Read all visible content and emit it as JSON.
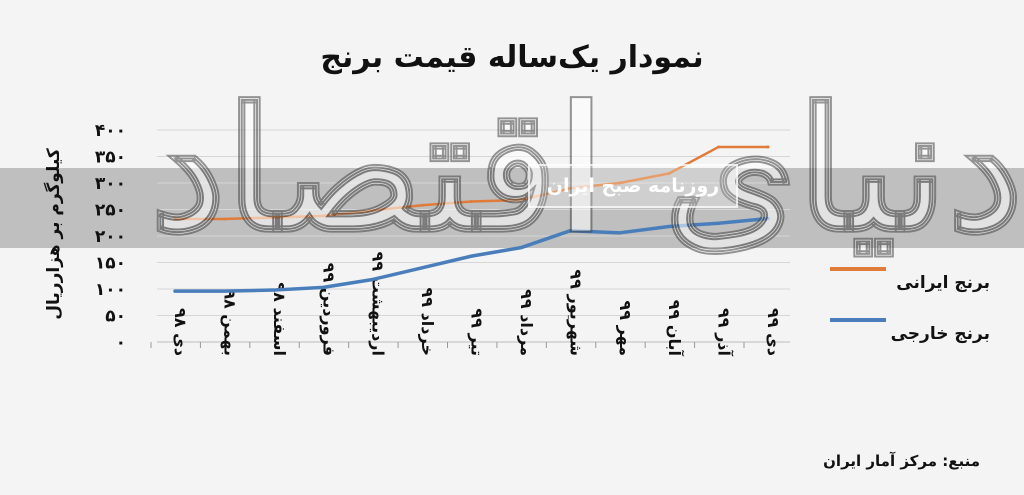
{
  "chart_data": {
    "type": "line",
    "title": "نمودار یک‌ساله قیمت برنج",
    "ylabel": "کیلوگرم بر هزارریال",
    "ylim": [
      0,
      400
    ],
    "yticks": [
      "۰",
      "۵۰",
      "۱۰۰",
      "۱۵۰",
      "۲۰۰",
      "۲۵۰",
      "۳۰۰",
      "۳۵۰",
      "۴۰۰"
    ],
    "yticks_values": [
      0,
      50,
      100,
      150,
      200,
      250,
      300,
      350,
      400
    ],
    "categories": [
      "دی ۹۸",
      "بهمن ۹۸",
      "اسفند ۹۸",
      "فروردین ۹۹",
      "اردیبهشت ۹۹",
      "خرداد ۹۹",
      "تیر ۹۹",
      "مرداد ۹۹",
      "شهریور ۹۹",
      "مهر ۹۹",
      "آبان ۹۹",
      "آذر ۹۹",
      "دی ۹۹"
    ],
    "series": [
      {
        "name": "برنج ایرانی",
        "color": "#e07b39",
        "values": [
          232,
          232,
          235,
          238,
          248,
          258,
          265,
          268,
          290,
          300,
          318,
          368,
          368
        ]
      },
      {
        "name": "برنج خارجی",
        "color": "#4a7ebb",
        "values": [
          96,
          96,
          98,
          103,
          118,
          140,
          162,
          178,
          210,
          206,
          218,
          224,
          233
        ]
      }
    ],
    "legend_position": "right",
    "grid": true
  },
  "watermark": {
    "big": "دنیای اقتصاد",
    "small": "روزنامه صبح ایران"
  },
  "source": "منبع: مرکز آمار ایران"
}
